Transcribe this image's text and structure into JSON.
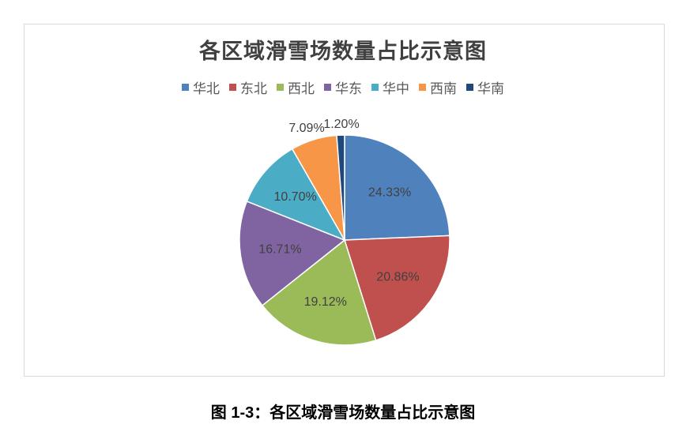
{
  "chart_data": {
    "type": "pie",
    "title": "各区域滑雪场数量占比示意图",
    "legend_position": "top",
    "categories": [
      "华北",
      "东北",
      "西北",
      "华东",
      "华中",
      "西南",
      "华南"
    ],
    "values": [
      24.33,
      20.86,
      19.12,
      16.71,
      10.7,
      7.09,
      1.2
    ],
    "labels": [
      "24.33%",
      "20.86%",
      "19.12%",
      "16.71%",
      "10.70%",
      "7.09%",
      "1.20%"
    ],
    "colors": [
      "#4F81BD",
      "#C0504D",
      "#9BBB59",
      "#8064A2",
      "#4BACC6",
      "#F79646",
      "#1F497D"
    ]
  },
  "caption": "图 1-3：各区域滑雪场数量占比示意图"
}
